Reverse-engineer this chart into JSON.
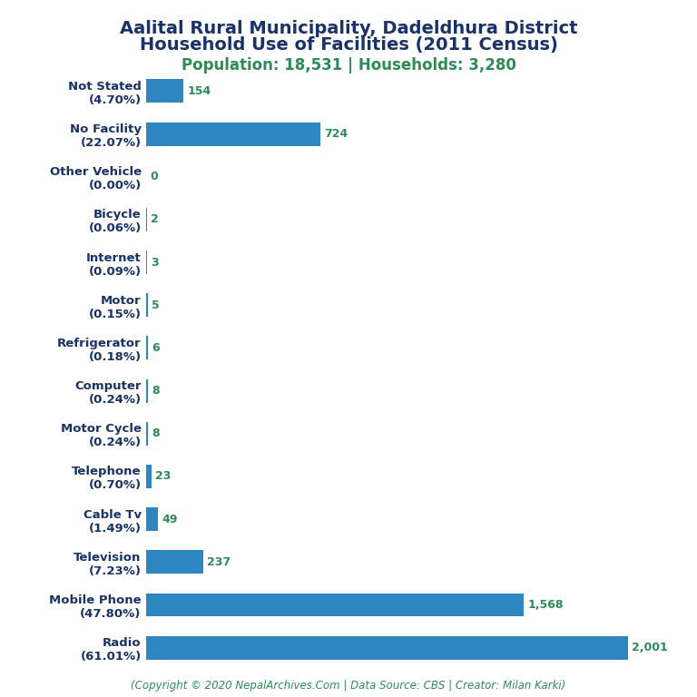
{
  "title_line1": "Aalital Rural Municipality, Dadeldhura District",
  "title_line2": "Household Use of Facilities (2011 Census)",
  "subtitle": "Population: 18,531 | Households: 3,280",
  "footer": "(Copyright © 2020 NepalArchives.Com | Data Source: CBS | Creator: Milan Karki)",
  "title_color": "#1a3366",
  "subtitle_color": "#2e8b57",
  "footer_color": "#2e8b57",
  "bar_color": "#2e86c1",
  "value_color": "#2e8b57",
  "categories": [
    "Not Stated\n(4.70%)",
    "No Facility\n(22.07%)",
    "Other Vehicle\n(0.00%)",
    "Bicycle\n(0.06%)",
    "Internet\n(0.09%)",
    "Motor\n(0.15%)",
    "Refrigerator\n(0.18%)",
    "Computer\n(0.24%)",
    "Motor Cycle\n(0.24%)",
    "Telephone\n(0.70%)",
    "Cable Tv\n(1.49%)",
    "Television\n(7.23%)",
    "Mobile Phone\n(47.80%)",
    "Radio\n(61.01%)"
  ],
  "values": [
    154,
    724,
    0,
    2,
    3,
    5,
    6,
    8,
    8,
    23,
    49,
    237,
    1568,
    2001
  ],
  "xlim": [
    0,
    2200
  ],
  "background_color": "#ffffff",
  "title_fontsize": 14,
  "subtitle_fontsize": 12,
  "label_fontsize": 9.5,
  "value_fontsize": 9,
  "footer_fontsize": 8.5
}
